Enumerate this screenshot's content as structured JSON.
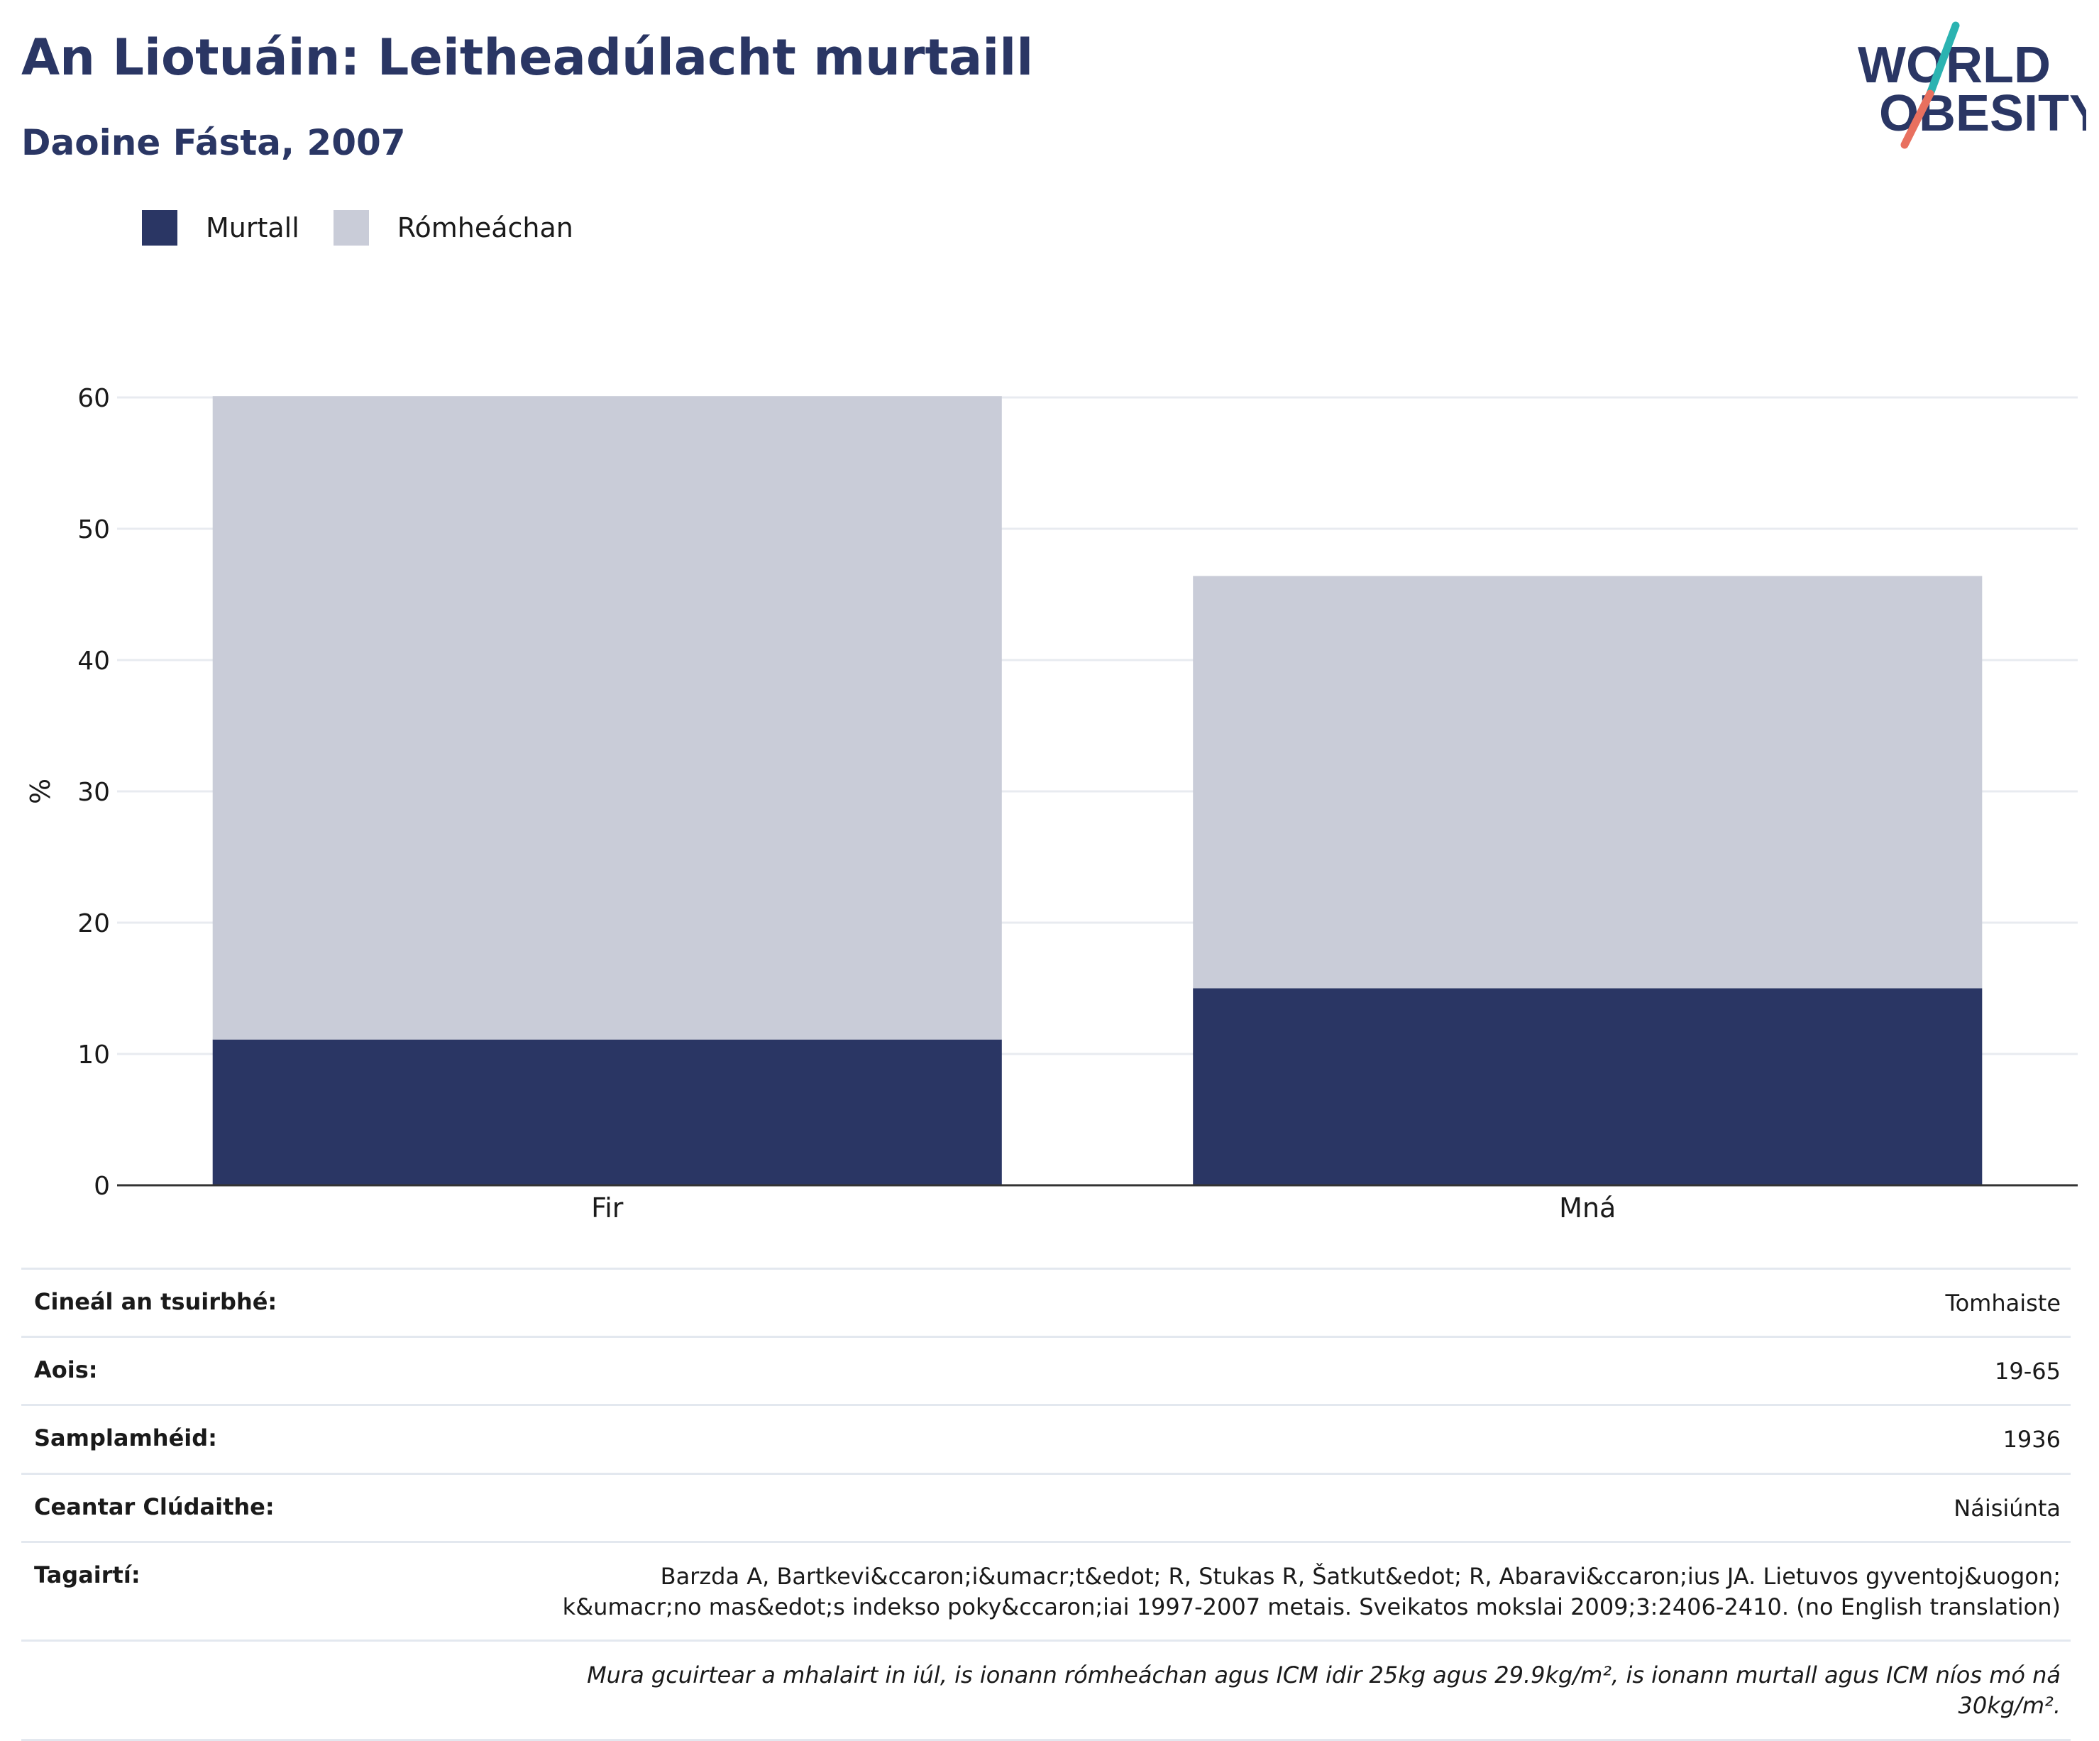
{
  "header": {
    "title": "An Liotuáin: Leitheadúlacht murtaill",
    "subtitle": "Daoine Fásta, 2007"
  },
  "logo": {
    "line1": "WORLD",
    "line2": "OBESITY"
  },
  "colors": {
    "obese": "#2a3664",
    "overweight": "#c9ccd8",
    "title": "#2a3664",
    "grid": "#e8ebf0",
    "logo_teal": "#2bb3b1",
    "logo_coral": "#e8705f"
  },
  "legend": [
    {
      "label": "Murtall",
      "color": "#2a3664"
    },
    {
      "label": "Rómheáchan",
      "color": "#c9ccd8"
    }
  ],
  "chart_data": {
    "type": "bar",
    "stacked": true,
    "categories": [
      "Fir",
      "Mná"
    ],
    "series": [
      {
        "name": "Murtall",
        "values": [
          11.1,
          15.0
        ]
      },
      {
        "name": "Rómheáchan",
        "values": [
          49.0,
          31.4
        ]
      }
    ],
    "ylabel": "%",
    "ylim": [
      0,
      60
    ],
    "yticks": [
      0,
      10,
      20,
      30,
      40,
      50,
      60
    ],
    "grid": true,
    "legend_position": "top-left"
  },
  "info": [
    {
      "key": "Cineál an tsuirbhé:",
      "value": "Tomhaiste"
    },
    {
      "key": "Aois:",
      "value": "19-65"
    },
    {
      "key": "Samplamhéid:",
      "value": "1936"
    },
    {
      "key": "Ceantar Clúdaithe:",
      "value": "Náisiúnta"
    },
    {
      "key": "Tagairtí:",
      "value": "Barzda A, Bartkevi&ccaron;i&umacr;t&edot; R, Stukas R, Šatkut&edot; R, Abaravi&ccaron;ius JA. Lietuvos gyventoj&uogon; k&umacr;no mas&edot;s indekso poky&ccaron;iai 1997-2007 metais. Sveikatos mokslai 2009;3:2406-2410. (no English translation)"
    }
  ],
  "note": "Mura gcuirtear a mhalairt in iúl, is ionann rómheáchan agus ICM idir 25kg agus 29.9kg/m², is ionann murtall agus ICM níos mó ná 30kg/m²."
}
